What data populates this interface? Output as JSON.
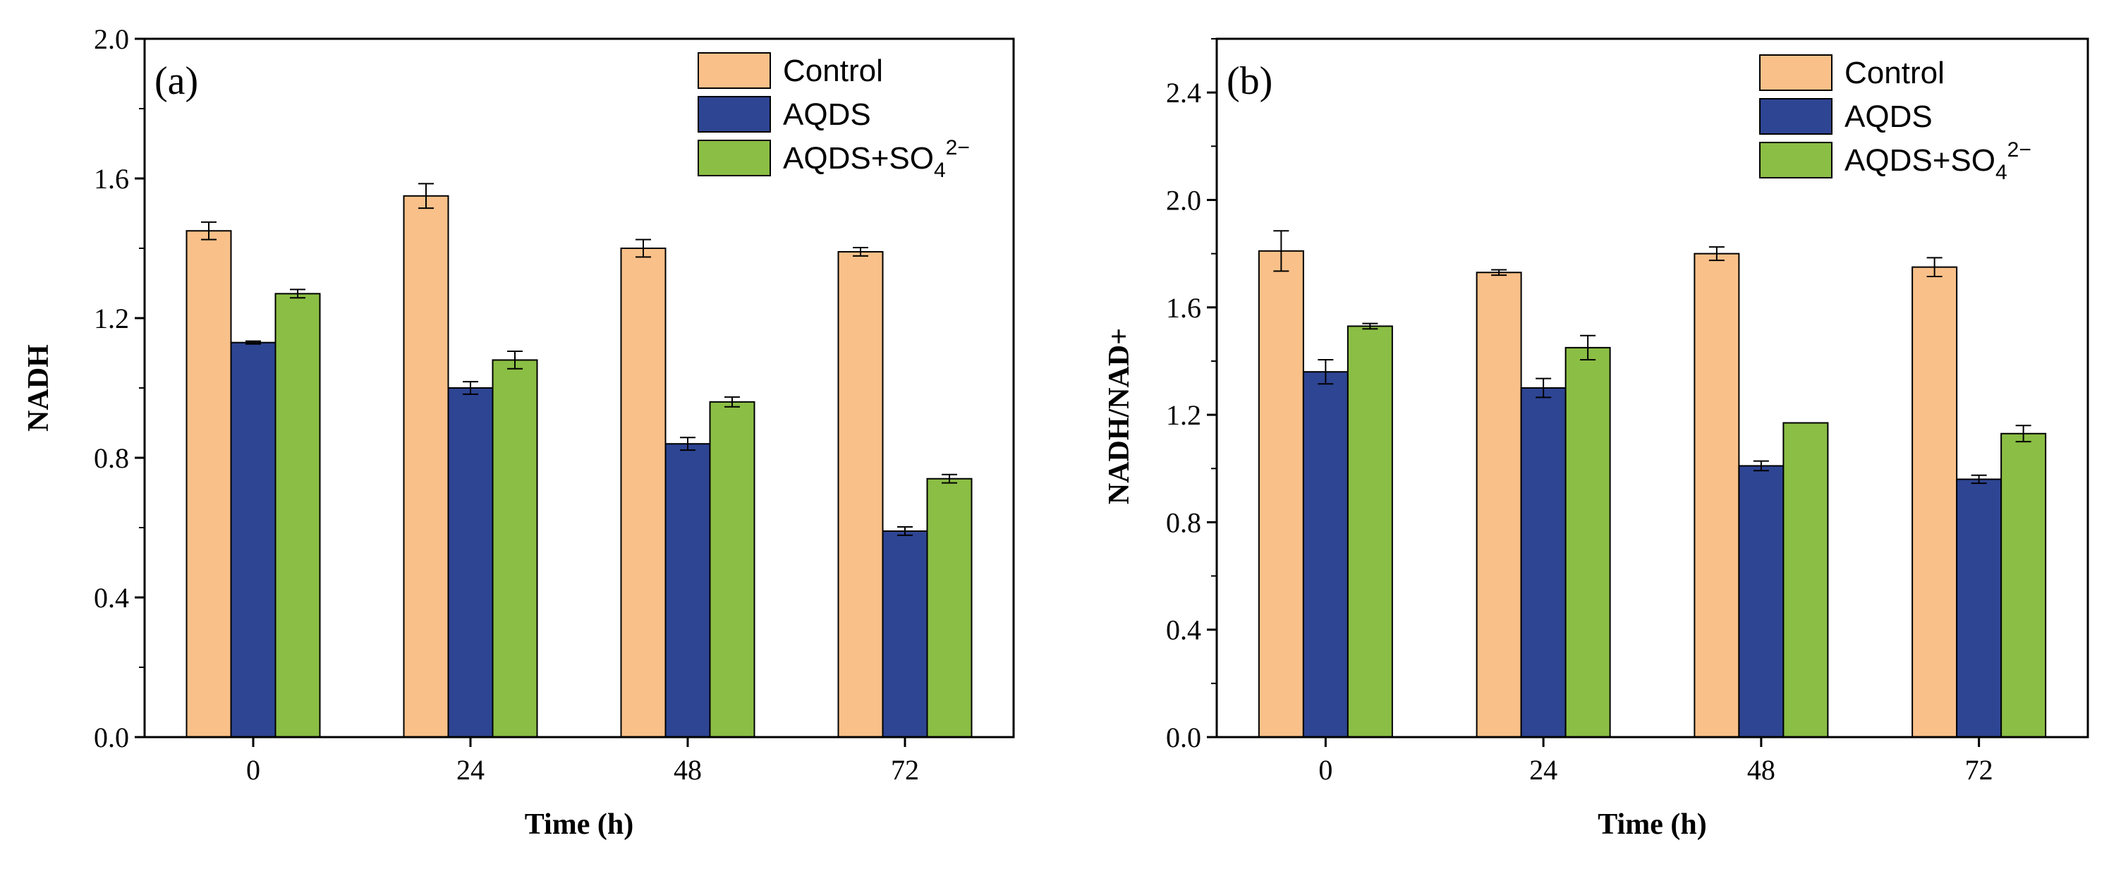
{
  "chart_data": [
    {
      "type": "bar",
      "panel_label": "(a)",
      "categories": [
        "0",
        "24",
        "48",
        "72"
      ],
      "xlabel": "Time (h)",
      "ylabel": "NADH",
      "ylim": [
        0,
        2.0
      ],
      "yticks": [
        "0.0",
        "0.4",
        "0.8",
        "1.2",
        "1.6",
        "2.0"
      ],
      "series": [
        {
          "name": "Control",
          "color": "#F9C089",
          "values": [
            1.45,
            1.55,
            1.4,
            1.39
          ],
          "errors": [
            0.025,
            0.035,
            0.025,
            0.012
          ]
        },
        {
          "name": "AQDS",
          "color": "#2E4593",
          "values": [
            1.13,
            1.0,
            0.84,
            0.59
          ],
          "errors": [
            0.004,
            0.018,
            0.018,
            0.012
          ]
        },
        {
          "name": "AQDS+SO4 2−",
          "color": "#8BBE45",
          "values": [
            1.27,
            1.08,
            0.96,
            0.74
          ],
          "errors": [
            0.012,
            0.025,
            0.014,
            0.012
          ]
        }
      ],
      "legend_position": "top-right",
      "legend_labels": {
        "control": "Control",
        "aqds": "AQDS",
        "mix_base": "AQDS+SO",
        "mix_sub": "4",
        "mix_sup": "2−"
      }
    },
    {
      "type": "bar",
      "panel_label": "(b)",
      "categories": [
        "0",
        "24",
        "48",
        "72"
      ],
      "xlabel": "Time (h)",
      "ylabel": "NADH/NAD+",
      "ylim": [
        0,
        2.6
      ],
      "yticks": [
        "0.0",
        "0.4",
        "0.8",
        "1.2",
        "1.6",
        "2.0",
        "2.4"
      ],
      "series": [
        {
          "name": "Control",
          "color": "#F9C089",
          "values": [
            1.81,
            1.73,
            1.8,
            1.75
          ],
          "errors": [
            0.075,
            0.01,
            0.025,
            0.035
          ]
        },
        {
          "name": "AQDS",
          "color": "#2E4593",
          "values": [
            1.36,
            1.3,
            1.01,
            0.96
          ],
          "errors": [
            0.045,
            0.035,
            0.018,
            0.015
          ]
        },
        {
          "name": "AQDS+SO4 2−",
          "color": "#8BBE45",
          "values": [
            1.53,
            1.45,
            1.17,
            1.13
          ],
          "errors": [
            0.01,
            0.045,
            0.0,
            0.03
          ]
        }
      ],
      "legend_position": "top-right",
      "legend_labels": {
        "control": "Control",
        "aqds": "AQDS",
        "mix_base": "AQDS+SO",
        "mix_sub": "4",
        "mix_sup": "2−"
      }
    }
  ]
}
